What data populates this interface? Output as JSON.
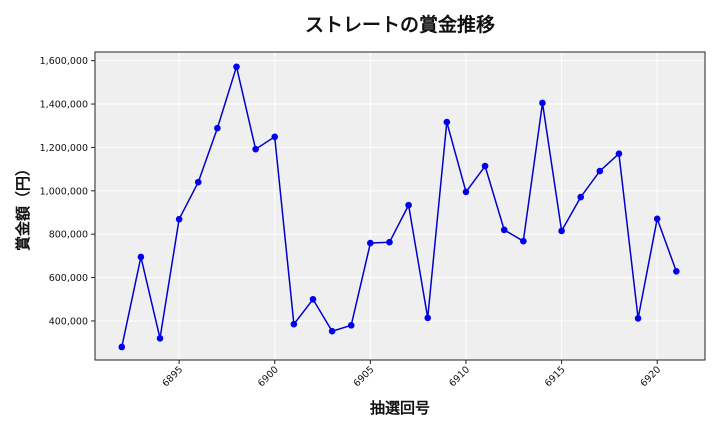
{
  "chart_data": {
    "type": "line",
    "title": "ストレートの賞金推移",
    "xlabel": "抽選回号",
    "ylabel": "賞金額（円）",
    "x": [
      6892,
      6893,
      6894,
      6895,
      6896,
      6897,
      6898,
      6899,
      6900,
      6901,
      6902,
      6903,
      6904,
      6905,
      6906,
      6907,
      6908,
      6909,
      6910,
      6911,
      6912,
      6913,
      6914,
      6915,
      6916,
      6917,
      6918,
      6919,
      6920,
      6921
    ],
    "series": [
      {
        "name": "ストレート",
        "color": "#0000cc",
        "marker_color": "#0000ee",
        "values": [
          280000,
          695000,
          320000,
          869000,
          1040000,
          1289000,
          1572000,
          1192000,
          1249000,
          385000,
          500000,
          353000,
          380000,
          759000,
          763000,
          934000,
          414000,
          1317000,
          995000,
          1114000,
          820000,
          768000,
          1405000,
          815000,
          971000,
          1091000,
          1171000,
          412000,
          871000,
          629000
        ]
      }
    ],
    "x_ticks": [
      6895,
      6900,
      6905,
      6910,
      6915,
      6920
    ],
    "y_ticks": [
      400000,
      600000,
      800000,
      1000000,
      1200000,
      1400000,
      1600000
    ],
    "y_tick_labels": [
      "400,000",
      "600,000",
      "800,000",
      "1,000,000",
      "1,200,000",
      "1,400,000",
      "1,600,000"
    ],
    "xlim": [
      6890.6,
      6922.5
    ],
    "ylim": [
      220000,
      1640000
    ],
    "grid": true,
    "legend": null,
    "background": "#efefef"
  }
}
